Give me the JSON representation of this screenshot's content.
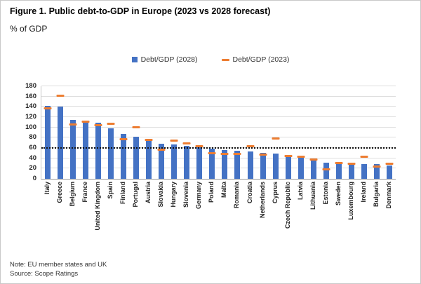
{
  "figure": {
    "title": "Figure 1. Public debt-to-GDP in Europe (2023 vs 2028 forecast)",
    "subtitle": "% of GDP",
    "note": "Note: EU member states and UK",
    "source": "Source: Scope Ratings"
  },
  "chart_data": {
    "type": "bar",
    "title": "Figure 1. Public debt-to-GDP in Europe (2023 vs 2028 forecast)",
    "ylabel": "% of GDP",
    "xlabel": "",
    "ylim": [
      0,
      180
    ],
    "ytick_step": 20,
    "grid": true,
    "legend_position": "top",
    "threshold_line": {
      "value": 60,
      "style": "dotted",
      "color": "#111111"
    },
    "categories": [
      "Italy",
      "Greece",
      "Belgium",
      "France",
      "United Kingdom",
      "Spain",
      "Finland",
      "Portugal",
      "Austria",
      "Slovakia",
      "Hungary",
      "Slovenia",
      "Germany",
      "Poland",
      "Malta",
      "Romania",
      "Croatia",
      "Netherlands",
      "Cyprus",
      "Czech Republic",
      "Latvia",
      "Lithuania",
      "Estonia",
      "Sweden",
      "Luxembourg",
      "Ireland",
      "Bulgaria",
      "Denmark"
    ],
    "series": [
      {
        "name": "Debt/GDP (2028)",
        "marker": "bar",
        "color": "#4472C4",
        "values": [
          142,
          140,
          115,
          112,
          109,
          98,
          87,
          82,
          77,
          68,
          67,
          64,
          62,
          58,
          56,
          54,
          53,
          50,
          49,
          43,
          42,
          35,
          31,
          30,
          29,
          29,
          28,
          26
        ]
      },
      {
        "name": "Debt/GDP (2023)",
        "marker": "dash",
        "color": "#ED7D31",
        "values": [
          137,
          161,
          106,
          111,
          104,
          107,
          77,
          100,
          76,
          56,
          74,
          69,
          64,
          50,
          49,
          49,
          64,
          47,
          78,
          44,
          43,
          38,
          19,
          31,
          29,
          43,
          24,
          30
        ]
      }
    ]
  }
}
